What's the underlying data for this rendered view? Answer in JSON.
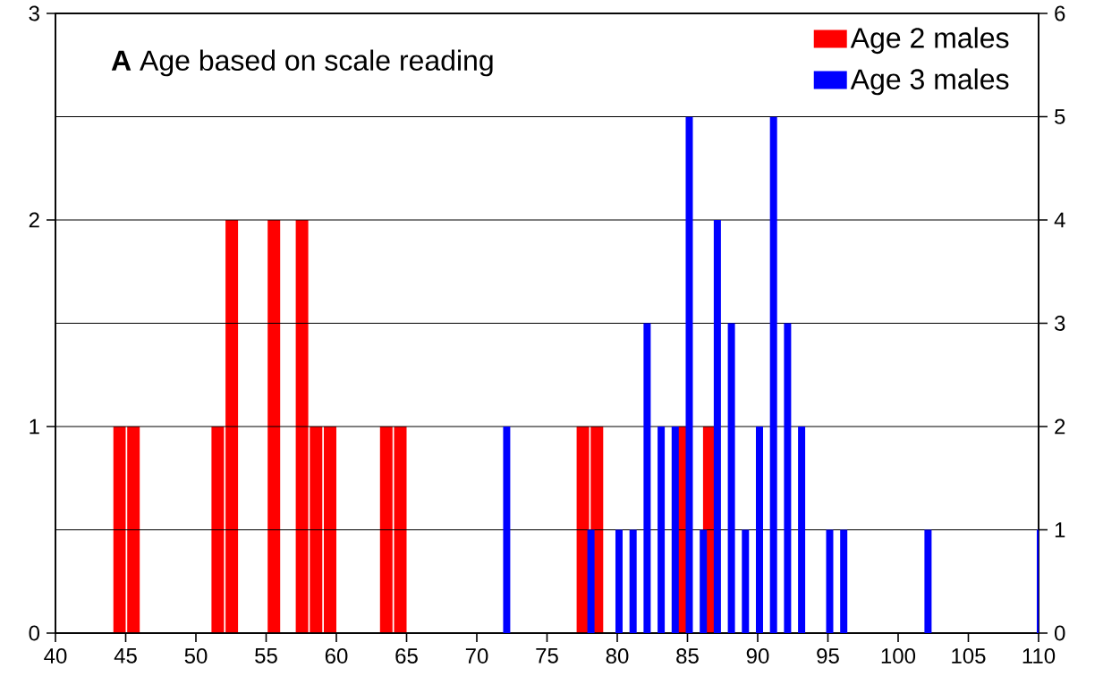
{
  "chart_data": {
    "type": "bar",
    "title": "**A**  Age based on scale reading",
    "xlim": [
      40,
      110
    ],
    "xticks": [
      40,
      45,
      50,
      55,
      60,
      65,
      70,
      75,
      80,
      85,
      90,
      95,
      100,
      105,
      110
    ],
    "ylim": [
      0,
      3
    ],
    "yticks": [
      0,
      1,
      2,
      3
    ],
    "y2lim": [
      0,
      6
    ],
    "y2ticks": [
      0,
      1,
      2,
      3,
      4,
      5,
      6
    ],
    "grid": "y",
    "legend": "top right",
    "series": [
      {
        "name": "Age 2 males",
        "color": "#ff0000",
        "x": [
          45,
          46,
          52,
          53,
          56,
          58,
          59,
          60,
          64,
          65,
          78,
          79,
          85,
          87
        ],
        "values": [
          1,
          1,
          1,
          2,
          2,
          2,
          1,
          1,
          1,
          1,
          1,
          1,
          1,
          1
        ]
      },
      {
        "name": "Age 3 males",
        "color": "#0000ff",
        "axis": "y2",
        "x": [
          72,
          78,
          80,
          81,
          82,
          83,
          84,
          85,
          86,
          87,
          88,
          89,
          90,
          91,
          92,
          93,
          95,
          96,
          102,
          110
        ],
        "values": [
          2,
          1,
          1,
          1,
          3,
          2,
          2,
          5,
          1,
          4,
          3,
          1,
          2,
          5,
          3,
          2,
          1,
          1,
          1,
          1
        ]
      }
    ]
  }
}
